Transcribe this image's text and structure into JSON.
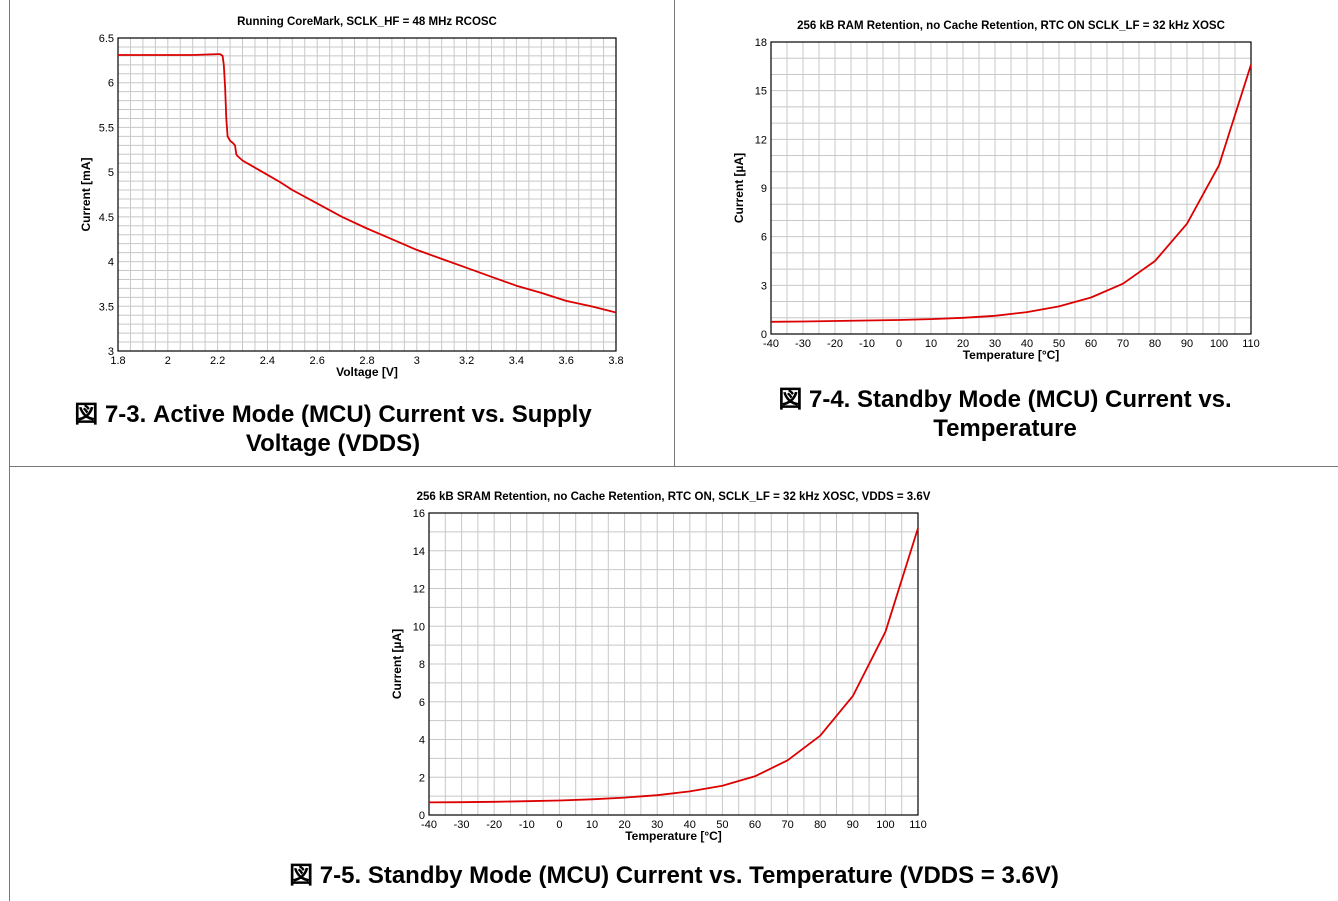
{
  "captions": {
    "fig3": "図 7-3. Active Mode (MCU) Current vs. Supply Voltage (VDDS)",
    "fig4": "図 7-4. Standby Mode (MCU) Current vs. Temperature",
    "fig5": "図 7-5. Standby Mode (MCU) Current vs. Temperature (VDDS = 3.6V)"
  },
  "chart_data": [
    {
      "id": "fig3",
      "type": "line",
      "title": "Running CoreMark, SCLK_HF = 48 MHz RCOSC",
      "xlabel": "Voltage [V]",
      "ylabel": "Current [mA]",
      "xlim": [
        1.8,
        3.8
      ],
      "ylim": [
        3,
        6.5
      ],
      "xticks": [
        1.8,
        2,
        2.2,
        2.4,
        2.6,
        2.8,
        3,
        3.2,
        3.4,
        3.6,
        3.8
      ],
      "xtick_labels": [
        "1.8",
        "2",
        "2.2",
        "2.4",
        "2.6",
        "2.8",
        "3",
        "3.2",
        "3.4",
        "3.6",
        "3.8"
      ],
      "yticks": [
        3,
        3.5,
        4,
        4.5,
        5,
        5.5,
        6,
        6.5
      ],
      "ytick_labels": [
        "3",
        "3.5",
        "4",
        "4.5",
        "5",
        "5.5",
        "6",
        "6.5"
      ],
      "x_minor": 0.05,
      "y_minor": 0.1,
      "grid": true,
      "color": "#dd0000",
      "series": [
        {
          "x": [
            1.8,
            2.0,
            2.1,
            2.2,
            2.21,
            2.22,
            2.225,
            2.23,
            2.235,
            2.24,
            2.25,
            2.26,
            2.27,
            2.275,
            2.28,
            2.3,
            2.35,
            2.4,
            2.45,
            2.5,
            2.6,
            2.7,
            2.8,
            2.9,
            3.0,
            3.1,
            3.2,
            3.3,
            3.4,
            3.5,
            3.6,
            3.7,
            3.8
          ],
          "y": [
            6.31,
            6.31,
            6.31,
            6.32,
            6.32,
            6.3,
            6.2,
            5.95,
            5.6,
            5.4,
            5.35,
            5.33,
            5.3,
            5.2,
            5.18,
            5.13,
            5.05,
            4.97,
            4.89,
            4.8,
            4.65,
            4.5,
            4.37,
            4.25,
            4.13,
            4.03,
            3.93,
            3.83,
            3.73,
            3.65,
            3.56,
            3.5,
            3.43
          ]
        }
      ]
    },
    {
      "id": "fig4",
      "type": "line",
      "title": "256 kB RAM Retention, no Cache Retention, RTC ON SCLK_LF = 32 kHz XOSC",
      "xlabel": "Temperature [°C]",
      "ylabel": "Current [µA]",
      "xlim": [
        -40,
        110
      ],
      "ylim": [
        0,
        18
      ],
      "xticks": [
        -40,
        -30,
        -20,
        -10,
        0,
        10,
        20,
        30,
        40,
        50,
        60,
        70,
        80,
        90,
        100,
        110
      ],
      "xtick_labels": [
        "-40",
        "-30",
        "-20",
        "-10",
        "0",
        "10",
        "20",
        "30",
        "40",
        "50",
        "60",
        "70",
        "80",
        "90",
        "100",
        "110"
      ],
      "yticks": [
        0,
        3,
        6,
        9,
        12,
        15,
        18
      ],
      "ytick_labels": [
        "0",
        "3",
        "6",
        "9",
        "12",
        "15",
        "18"
      ],
      "x_minor": 5,
      "y_minor": 1,
      "grid": true,
      "color": "#dd0000",
      "series": [
        {
          "x": [
            -40,
            -30,
            -20,
            -10,
            0,
            10,
            20,
            30,
            40,
            50,
            60,
            70,
            80,
            90,
            100,
            110
          ],
          "y": [
            0.75,
            0.77,
            0.8,
            0.83,
            0.86,
            0.92,
            1.0,
            1.12,
            1.35,
            1.7,
            2.25,
            3.1,
            4.5,
            6.8,
            10.4,
            16.6
          ]
        }
      ]
    },
    {
      "id": "fig5",
      "type": "line",
      "title": "256 kB SRAM Retention, no Cache Retention, RTC ON, SCLK_LF = 32 kHz XOSC, VDDS = 3.6V",
      "xlabel": "Temperature [°C]",
      "ylabel": "Current [µA]",
      "xlim": [
        -40,
        110
      ],
      "ylim": [
        0,
        16
      ],
      "xticks": [
        -40,
        -30,
        -20,
        -10,
        0,
        10,
        20,
        30,
        40,
        50,
        60,
        70,
        80,
        90,
        100,
        110
      ],
      "xtick_labels": [
        "-40",
        "-30",
        "-20",
        "-10",
        "0",
        "10",
        "20",
        "30",
        "40",
        "50",
        "60",
        "70",
        "80",
        "90",
        "100",
        "110"
      ],
      "yticks": [
        0,
        2,
        4,
        6,
        8,
        10,
        12,
        14,
        16
      ],
      "ytick_labels": [
        "0",
        "2",
        "4",
        "6",
        "8",
        "10",
        "12",
        "14",
        "16"
      ],
      "x_minor": 5,
      "y_minor": 1,
      "grid": true,
      "color": "#dd0000",
      "series": [
        {
          "x": [
            -40,
            -30,
            -20,
            -10,
            0,
            10,
            20,
            30,
            40,
            50,
            60,
            70,
            80,
            90,
            100,
            110
          ],
          "y": [
            0.67,
            0.68,
            0.7,
            0.73,
            0.77,
            0.83,
            0.92,
            1.05,
            1.25,
            1.55,
            2.05,
            2.9,
            4.2,
            6.3,
            9.7,
            15.2
          ]
        }
      ]
    }
  ]
}
